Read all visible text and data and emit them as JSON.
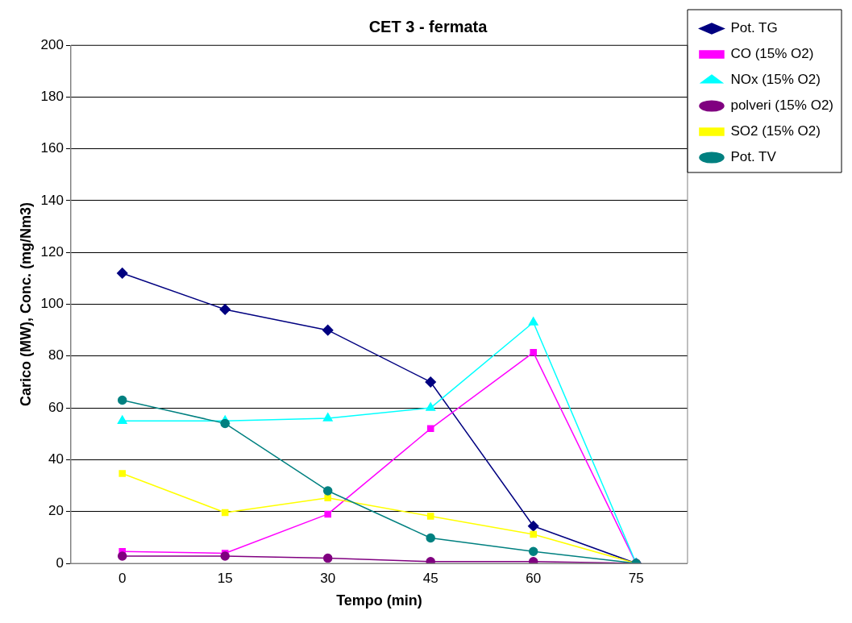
{
  "chart_data": {
    "type": "line",
    "title": "CET 3 - fermata",
    "xlabel": "Tempo (min)",
    "ylabel": "Carico (MW), Conc. (mg/Nm3)",
    "categories": [
      "0",
      "15",
      "30",
      "45",
      "60",
      "75"
    ],
    "series": [
      {
        "name": "Pot. TG",
        "color": "#000080",
        "marker": "diamond",
        "values": [
          112,
          98,
          90,
          70,
          14.4,
          0
        ]
      },
      {
        "name": "CO (15% O2)",
        "color": "#ff00ff",
        "marker": "square",
        "values": [
          4.6,
          3.9,
          19,
          52,
          81.4,
          0
        ]
      },
      {
        "name": "NOx (15% O2)",
        "color": "#00ffff",
        "marker": "triangle",
        "values": [
          55,
          55,
          56,
          60,
          93,
          0
        ]
      },
      {
        "name": "polveri (15% O2)",
        "color": "#800080",
        "marker": "circle",
        "values": [
          2.8,
          2.8,
          2,
          0.7,
          0.7,
          0
        ]
      },
      {
        "name": "SO2 (15% O2)",
        "color": "#ffff00",
        "marker": "square",
        "values": [
          34.7,
          19.6,
          25.3,
          18.2,
          11.2,
          0
        ]
      },
      {
        "name": "Pot. TV",
        "color": "#008080",
        "marker": "circle",
        "values": [
          63,
          54,
          28,
          9.8,
          4.6,
          0
        ]
      }
    ],
    "ylim": [
      0,
      200
    ],
    "yticks": [
      0,
      20,
      40,
      60,
      80,
      100,
      120,
      140,
      160,
      180,
      200
    ],
    "grid": "y",
    "legend": "top right"
  }
}
